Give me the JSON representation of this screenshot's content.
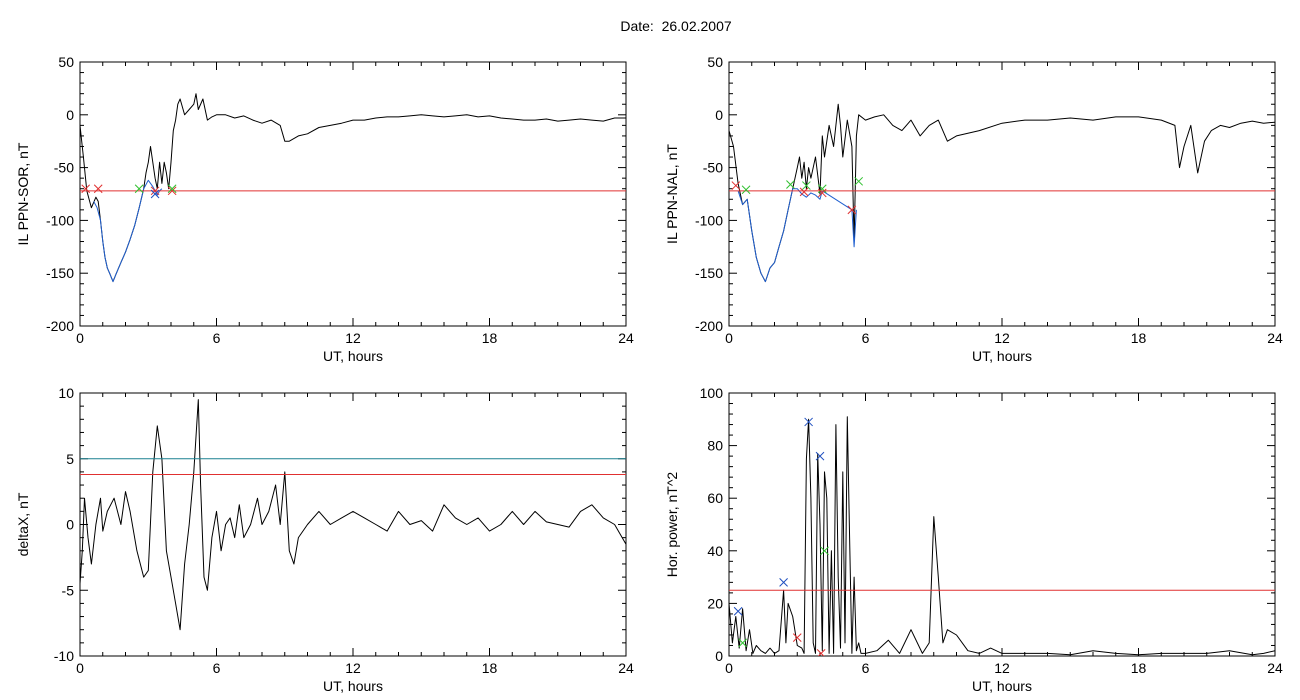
{
  "figure_title": "Date:  26.02.2007",
  "chart_data": [
    {
      "type": "line",
      "xlabel": "UT, hours",
      "ylabel": "IL PPN-SOR, nT",
      "xlim": [
        0,
        24
      ],
      "ylim": [
        -200,
        50
      ],
      "xticks": [
        0,
        6,
        12,
        18,
        24
      ],
      "yticks": [
        -200,
        -150,
        -100,
        -50,
        0,
        50
      ],
      "series": [
        {
          "color": "#000000",
          "x": [
            0,
            0.15,
            0.3,
            0.5,
            0.7,
            0.8,
            0.9,
            1.0,
            1.1,
            1.2,
            1.3,
            1.45,
            1.6,
            1.8,
            2.0,
            2.2,
            2.4,
            2.6,
            2.8,
            2.9,
            3.0,
            3.1,
            3.2,
            3.3,
            3.4,
            3.5,
            3.6,
            3.7,
            3.8,
            3.9,
            4.0,
            4.1,
            4.2,
            4.3,
            4.4,
            4.6,
            4.8,
            5.0,
            5.1,
            5.2,
            5.4,
            5.6,
            5.8,
            6.0,
            6.4,
            6.8,
            7.2,
            7.6,
            8.0,
            8.4,
            8.8,
            9.0,
            9.2,
            9.6,
            10.0,
            10.5,
            11.0,
            11.5,
            12.0,
            12.5,
            13.0,
            13.5,
            14.0,
            14.5,
            15.0,
            15.5,
            16.0,
            16.5,
            17.0,
            17.5,
            18.0,
            18.5,
            19.0,
            19.5,
            20.0,
            20.5,
            21.0,
            21.5,
            22.0,
            22.5,
            23.0,
            23.5,
            24.0
          ],
          "y": [
            -10,
            -40,
            -72,
            -88,
            -78,
            -82,
            -100,
            -120,
            -135,
            -145,
            -150,
            -158,
            -150,
            -140,
            -130,
            -118,
            -105,
            -88,
            -70,
            -55,
            -45,
            -30,
            -45,
            -60,
            -70,
            -45,
            -65,
            -45,
            -55,
            -70,
            -45,
            -15,
            -5,
            10,
            15,
            0,
            5,
            10,
            20,
            5,
            15,
            -5,
            -2,
            0,
            0,
            -3,
            -1,
            -5,
            -8,
            -5,
            -10,
            -25,
            -25,
            -20,
            -18,
            -12,
            -10,
            -8,
            -5,
            -5,
            -3,
            -2,
            -2,
            -1,
            0,
            -1,
            -2,
            -1,
            0,
            -2,
            -1,
            -3,
            -4,
            -5,
            -5,
            -4,
            -6,
            -5,
            -4,
            -5,
            -6,
            -3,
            -3
          ]
        },
        {
          "color": "#2060d0",
          "x": [
            0.6,
            0.75,
            0.9,
            1.0,
            1.1,
            1.2,
            1.3,
            1.45,
            1.6,
            1.8,
            2.0,
            2.2,
            2.4,
            2.6,
            2.8,
            3.0,
            3.2,
            3.3,
            3.4,
            3.5,
            3.6
          ],
          "y": [
            -82,
            -88,
            -100,
            -120,
            -135,
            -145,
            -150,
            -158,
            -150,
            -140,
            -130,
            -118,
            -105,
            -88,
            -70,
            -62,
            -68,
            -72,
            -76,
            -72,
            -70
          ]
        }
      ],
      "hlines": [
        {
          "y": -72,
          "color": "#e03030"
        }
      ],
      "markers": [
        {
          "x": 0.25,
          "y": -70,
          "color": "#e03030"
        },
        {
          "x": 0.8,
          "y": -70,
          "color": "#e03030"
        },
        {
          "x": 2.6,
          "y": -70,
          "color": "#30c030"
        },
        {
          "x": 3.3,
          "y": -72,
          "color": "#e03030"
        },
        {
          "x": 3.3,
          "y": -75,
          "color": "#2050c0"
        },
        {
          "x": 4.05,
          "y": -72,
          "color": "#e03030"
        },
        {
          "x": 4.05,
          "y": -70,
          "color": "#30c030"
        }
      ]
    },
    {
      "type": "line",
      "xlabel": "UT, hours",
      "ylabel": "IL PPN-NAL, nT",
      "xlim": [
        0,
        24
      ],
      "ylim": [
        -200,
        50
      ],
      "xticks": [
        0,
        6,
        12,
        18,
        24
      ],
      "yticks": [
        -200,
        -150,
        -100,
        -50,
        0,
        50
      ],
      "series": [
        {
          "color": "#000000",
          "x": [
            0,
            0.2,
            0.4,
            0.6,
            0.8,
            1.0,
            1.2,
            1.4,
            1.6,
            1.8,
            2.0,
            2.2,
            2.4,
            2.6,
            2.8,
            3.0,
            3.1,
            3.2,
            3.3,
            3.4,
            3.5,
            3.6,
            3.8,
            4.0,
            4.1,
            4.2,
            4.4,
            4.6,
            4.8,
            4.9,
            5.0,
            5.2,
            5.4,
            5.5,
            5.6,
            5.7,
            6.0,
            6.4,
            6.8,
            7.2,
            7.6,
            8.0,
            8.4,
            8.8,
            9.2,
            9.6,
            10.0,
            11.0,
            12.0,
            13.0,
            14.0,
            15.0,
            16.0,
            17.0,
            18.0,
            19.0,
            19.6,
            19.8,
            20.0,
            20.3,
            20.6,
            20.9,
            21.2,
            21.6,
            22.0,
            22.5,
            23.0,
            23.5,
            24.0
          ],
          "y": [
            -15,
            -30,
            -65,
            -85,
            -80,
            -110,
            -135,
            -150,
            -158,
            -145,
            -140,
            -125,
            -110,
            -90,
            -70,
            -50,
            -40,
            -60,
            -45,
            -70,
            -50,
            -60,
            -40,
            -75,
            -20,
            -40,
            -10,
            -30,
            10,
            -10,
            -40,
            -5,
            -30,
            -120,
            -20,
            0,
            -5,
            -2,
            0,
            -10,
            -15,
            -5,
            -20,
            -10,
            -5,
            -25,
            -20,
            -15,
            -8,
            -5,
            -5,
            -3,
            -5,
            -2,
            -2,
            -5,
            -10,
            -50,
            -30,
            -10,
            -55,
            -25,
            -15,
            -10,
            -12,
            -8,
            -6,
            -8,
            -7
          ]
        },
        {
          "color": "#2060d0",
          "x": [
            0.4,
            0.6,
            0.8,
            1.0,
            1.2,
            1.4,
            1.6,
            1.8,
            2.0,
            2.2,
            2.4,
            2.6,
            2.8,
            3.0,
            3.2,
            3.4,
            3.6,
            3.8,
            4.0,
            4.1,
            5.4,
            5.5,
            5.6
          ],
          "y": [
            -72,
            -85,
            -80,
            -110,
            -135,
            -150,
            -158,
            -145,
            -140,
            -125,
            -110,
            -90,
            -70,
            -70,
            -75,
            -78,
            -74,
            -76,
            -80,
            -72,
            -90,
            -125,
            -90
          ]
        }
      ],
      "hlines": [
        {
          "y": -72,
          "color": "#e03030"
        }
      ],
      "markers": [
        {
          "x": 0.3,
          "y": -67,
          "color": "#e03030"
        },
        {
          "x": 0.75,
          "y": -71,
          "color": "#30c030"
        },
        {
          "x": 2.7,
          "y": -66,
          "color": "#30c030"
        },
        {
          "x": 3.3,
          "y": -73,
          "color": "#e03030"
        },
        {
          "x": 3.4,
          "y": -67,
          "color": "#30c030"
        },
        {
          "x": 4.1,
          "y": -70,
          "color": "#30c030"
        },
        {
          "x": 4.1,
          "y": -74,
          "color": "#e03030"
        },
        {
          "x": 5.4,
          "y": -90,
          "color": "#e03030"
        },
        {
          "x": 5.7,
          "y": -63,
          "color": "#30c030"
        }
      ]
    },
    {
      "type": "line",
      "xlabel": "UT, hours",
      "ylabel": "deltaX, nT",
      "xlim": [
        0,
        24
      ],
      "ylim": [
        -10,
        10
      ],
      "xticks": [
        0,
        6,
        12,
        18,
        24
      ],
      "yticks": [
        -10,
        -5,
        0,
        5,
        10
      ],
      "series": [
        {
          "color": "#000000",
          "x": [
            0,
            0.1,
            0.2,
            0.35,
            0.5,
            0.7,
            0.9,
            1.0,
            1.2,
            1.5,
            1.8,
            2.0,
            2.2,
            2.5,
            2.8,
            3.0,
            3.2,
            3.4,
            3.6,
            3.8,
            4.0,
            4.2,
            4.4,
            4.6,
            4.8,
            5.0,
            5.2,
            5.3,
            5.45,
            5.6,
            5.8,
            6.0,
            6.2,
            6.4,
            6.6,
            6.8,
            7.0,
            7.2,
            7.5,
            7.8,
            8.0,
            8.3,
            8.6,
            8.8,
            9.0,
            9.2,
            9.4,
            9.6,
            10.0,
            10.5,
            11.0,
            11.5,
            12.0,
            12.5,
            13.0,
            13.5,
            14.0,
            14.5,
            15.0,
            15.5,
            16.0,
            16.5,
            17.0,
            17.5,
            18.0,
            18.5,
            19.0,
            19.5,
            20.0,
            20.5,
            21.0,
            21.5,
            22.0,
            22.5,
            23.0,
            23.5,
            24.0
          ],
          "y": [
            -4.5,
            -2,
            2,
            -1,
            -3,
            0,
            2,
            -0.5,
            1,
            2,
            0,
            2.5,
            1,
            -2,
            -4,
            -3.5,
            4,
            7.5,
            5,
            -2,
            -4,
            -6,
            -8,
            -3,
            0,
            4,
            9.5,
            3,
            -4,
            -5,
            -1,
            1,
            -2,
            0,
            0.5,
            -1,
            1.5,
            -1,
            0,
            2,
            0,
            1,
            3,
            0,
            4,
            -2,
            -3,
            -1,
            0,
            1,
            0,
            0.5,
            1,
            0.5,
            0,
            -0.5,
            1,
            0,
            0.3,
            -0.5,
            1.5,
            0.5,
            0,
            0.5,
            -0.5,
            0,
            1,
            0,
            1,
            0.2,
            0,
            -0.2,
            1,
            1.5,
            0.5,
            0,
            -1.5
          ]
        }
      ],
      "hlines": [
        {
          "y": 3.8,
          "color": "#e03030"
        },
        {
          "y": 5.0,
          "color": "#1a8090"
        }
      ],
      "markers": []
    },
    {
      "type": "line",
      "xlabel": "UT, hours",
      "ylabel": "Hor. power, nT^2",
      "xlim": [
        0,
        24
      ],
      "ylim": [
        0,
        100
      ],
      "xticks": [
        0,
        6,
        12,
        18,
        24
      ],
      "yticks": [
        0,
        20,
        40,
        60,
        80,
        100
      ],
      "series": [
        {
          "color": "#000000",
          "x": [
            0,
            0.15,
            0.3,
            0.45,
            0.6,
            0.75,
            0.9,
            1.05,
            1.2,
            1.4,
            1.6,
            1.8,
            2.0,
            2.2,
            2.4,
            2.5,
            2.6,
            2.8,
            3.0,
            3.2,
            3.3,
            3.4,
            3.5,
            3.6,
            3.7,
            3.8,
            3.9,
            4.0,
            4.1,
            4.2,
            4.3,
            4.4,
            4.5,
            4.6,
            4.7,
            4.8,
            4.9,
            5.0,
            5.1,
            5.2,
            5.3,
            5.4,
            5.5,
            5.6,
            5.7,
            5.8,
            6.0,
            6.5,
            7.0,
            7.5,
            8.0,
            8.5,
            8.8,
            9.0,
            9.2,
            9.4,
            9.6,
            10.0,
            10.5,
            11.0,
            11.5,
            12.0,
            13.0,
            14.0,
            15.0,
            16.0,
            17.0,
            18.0,
            19.0,
            20.0,
            21.0,
            22.0,
            23.0,
            23.5,
            24.0
          ],
          "y": [
            20,
            5,
            15,
            3,
            18,
            2,
            10,
            1,
            4,
            2,
            1,
            3,
            1,
            2,
            25,
            5,
            20,
            15,
            4,
            3,
            1,
            75,
            90,
            60,
            5,
            1,
            77,
            50,
            2,
            70,
            60,
            1,
            40,
            1,
            88,
            30,
            3,
            70,
            5,
            91,
            45,
            1,
            30,
            2,
            5,
            1,
            1,
            2,
            6,
            1,
            10,
            1,
            5,
            53,
            30,
            5,
            10,
            8,
            2,
            1,
            3,
            1,
            1,
            1,
            0.5,
            2,
            1,
            0.5,
            1,
            1,
            1,
            2,
            0.5,
            1,
            2
          ]
        }
      ],
      "hlines": [
        {
          "y": 25,
          "color": "#e03030"
        }
      ],
      "markers": [
        {
          "x": 0.4,
          "y": 17,
          "color": "#2050c0"
        },
        {
          "x": 0.6,
          "y": 5,
          "color": "#30c030"
        },
        {
          "x": 2.4,
          "y": 28,
          "color": "#2050c0"
        },
        {
          "x": 3.0,
          "y": 7,
          "color": "#e03030"
        },
        {
          "x": 3.5,
          "y": 89,
          "color": "#2050c0"
        },
        {
          "x": 4.0,
          "y": 76,
          "color": "#2050c0"
        },
        {
          "x": 4.05,
          "y": 1,
          "color": "#e03030"
        },
        {
          "x": 4.2,
          "y": 40,
          "color": "#30c030"
        }
      ]
    }
  ]
}
